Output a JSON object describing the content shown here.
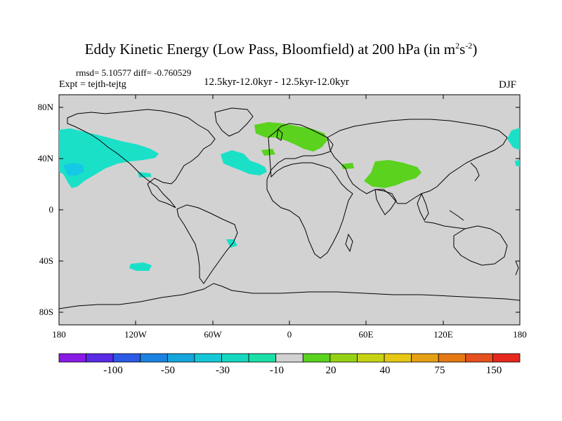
{
  "title": {
    "main": "Eddy Kinetic Energy (Low Pass, Bloomfield) at 200 hPa (in m",
    "sup1": "2",
    "mid": "s",
    "sup2": "-2",
    "end": ")"
  },
  "stats": "rmsd= 5.10577 diff= -0.760529",
  "experiment": "Expt = tejth-tejtg",
  "period": "12.5kyr-12.0kyr - 12.5kyr-12.0kyr",
  "season": "DJF",
  "lat_ticks": [
    "80N",
    "40N",
    "0",
    "40S",
    "80S"
  ],
  "lon_ticks": [
    "180",
    "120W",
    "60W",
    "0",
    "60E",
    "120E",
    "180"
  ],
  "colorbar": {
    "colors": [
      "#8a1ae6",
      "#5a2ae6",
      "#2a5ae6",
      "#1a82e0",
      "#14a6dc",
      "#14c8d8",
      "#14d8c0",
      "#1ae0a8",
      "#d2d2d2",
      "#5ad21e",
      "#96d214",
      "#c8d214",
      "#e6c814",
      "#e6a014",
      "#e67814",
      "#e6501e",
      "#e6281e"
    ],
    "labels": [
      "-100",
      "-50",
      "-30",
      "-10",
      "20",
      "40",
      "75",
      "150"
    ]
  },
  "colors": {
    "ocean_land": "#d2d2d2",
    "negative_anomaly": "#1ae0c8",
    "strong_negative": "#14c8e6",
    "positive_anomaly": "#5ad21e"
  }
}
